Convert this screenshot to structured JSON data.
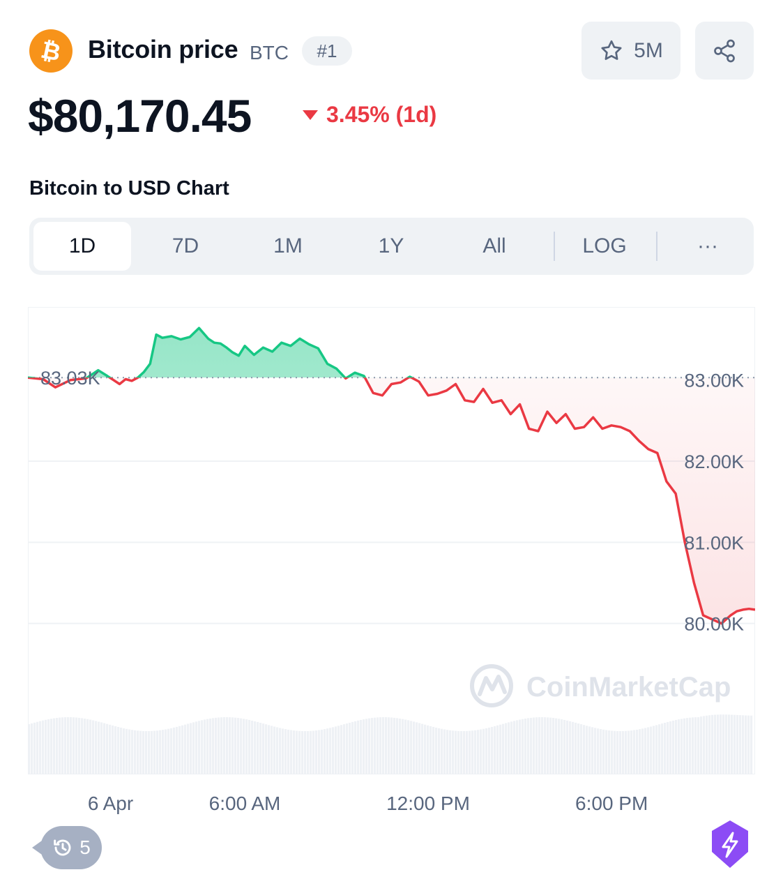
{
  "header": {
    "coin_name": "Bitcoin price",
    "symbol": "BTC",
    "rank": "#1",
    "watchlist_count": "5M",
    "price": "$80,170.45",
    "change": "3.45% (1d)"
  },
  "chart_title": "Bitcoin to USD Chart",
  "tabs": [
    "1D",
    "7D",
    "1M",
    "1Y",
    "All",
    "LOG",
    "···"
  ],
  "active_tab": "1D",
  "watermark": "CoinMarketCap",
  "history_count": "5",
  "colors": {
    "up": "#16c784",
    "down": "#ea3943",
    "logo": "#f7931a",
    "accent": "#8c4cf5"
  },
  "chart_data": {
    "type": "area",
    "baseline_label": "83.03K",
    "baseline": 83030,
    "y_ticks": [
      {
        "value": 83000,
        "label": "83.00K"
      },
      {
        "value": 82000,
        "label": "82.00K"
      },
      {
        "value": 81000,
        "label": "81.00K"
      },
      {
        "value": 80000,
        "label": "80.00K"
      }
    ],
    "x_ticks": [
      {
        "t": 1.6,
        "label": "6 Apr"
      },
      {
        "t": 6,
        "label": "6:00 AM"
      },
      {
        "t": 12,
        "label": "12:00 PM"
      },
      {
        "t": 18,
        "label": "6:00 PM"
      }
    ],
    "ylim": [
      79000,
      83900
    ],
    "xlim": [
      -1.1,
      22.7
    ],
    "series": [
      {
        "x": [
          -1.1,
          -0.6,
          -0.2,
          0.3,
          0.8,
          1.2,
          1.5,
          1.7,
          1.9,
          2.1,
          2.3,
          2.5,
          2.7,
          2.9,
          3.1,
          3.3,
          3.6,
          3.9,
          4.2,
          4.5,
          4.8,
          5.0,
          5.2,
          5.4,
          5.6,
          5.8,
          6.0,
          6.3,
          6.6,
          6.9,
          7.2,
          7.5,
          7.8,
          8.1,
          8.4,
          8.7,
          9.0,
          9.3,
          9.6,
          9.9,
          10.2,
          10.5,
          10.8,
          11.1,
          11.4,
          11.7,
          12.0,
          12.3,
          12.6,
          12.9,
          13.2,
          13.5,
          13.8,
          14.1,
          14.4,
          14.7,
          15.0,
          15.3,
          15.6,
          15.9,
          16.2,
          16.5,
          16.8,
          17.1,
          17.4,
          17.7,
          18.0,
          18.3,
          18.6,
          18.9,
          19.2,
          19.5,
          19.8,
          20.1,
          20.4,
          20.7,
          21.0,
          21.3,
          21.6,
          21.9,
          22.1,
          22.3,
          22.5,
          22.7
        ],
        "y": [
          83030,
          83010,
          82910,
          83000,
          83020,
          83120,
          83050,
          83000,
          82950,
          83010,
          82990,
          83030,
          83100,
          83200,
          83560,
          83520,
          83540,
          83500,
          83530,
          83640,
          83510,
          83460,
          83450,
          83400,
          83340,
          83300,
          83420,
          83310,
          83400,
          83350,
          83460,
          83420,
          83510,
          83440,
          83390,
          83200,
          83140,
          83020,
          83090,
          83050,
          82840,
          82810,
          82950,
          82970,
          83040,
          82980,
          82810,
          82830,
          82870,
          82950,
          82750,
          82730,
          82890,
          82720,
          82750,
          82580,
          82700,
          82400,
          82370,
          82610,
          82470,
          82580,
          82400,
          82420,
          82540,
          82400,
          82440,
          82420,
          82370,
          82250,
          82150,
          82100,
          81750,
          81600,
          81000,
          80500,
          80100,
          80050,
          80000,
          80100,
          80150,
          80170,
          80180,
          80170
        ]
      }
    ]
  }
}
